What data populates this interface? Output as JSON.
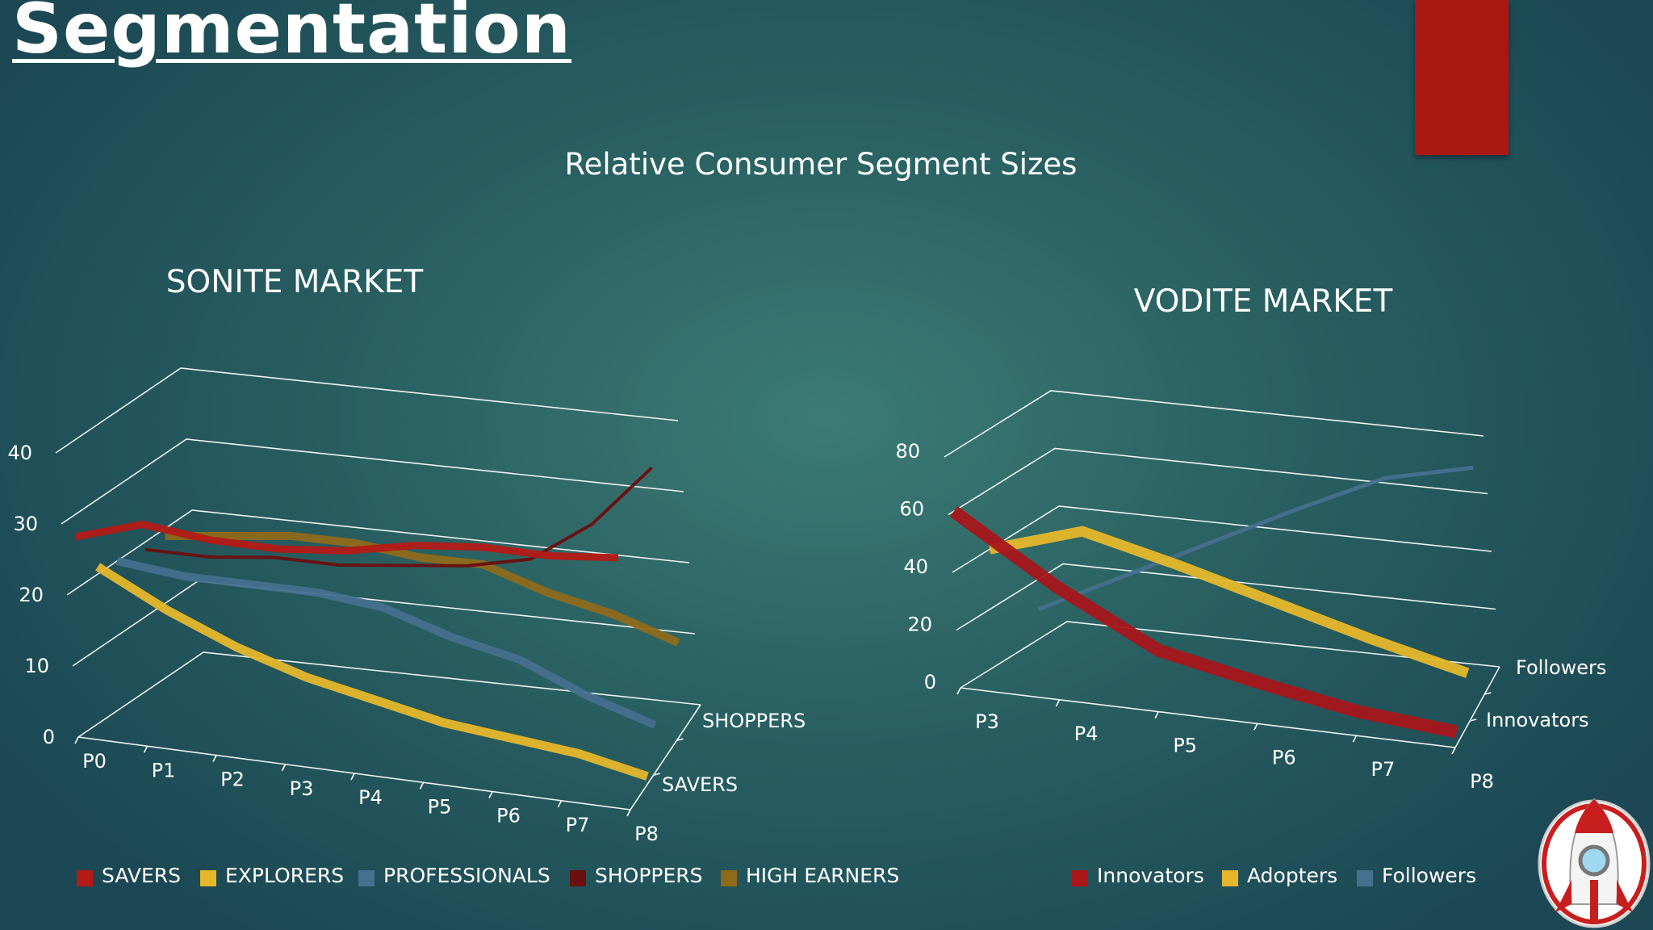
{
  "header": {
    "title": "Segmentation",
    "subtitle": "Relative Consumer Segment Sizes"
  },
  "chart_data": [
    {
      "type": "line",
      "style": "3d",
      "title": "SONITE MARKET",
      "categories": [
        "P0",
        "P1",
        "P2",
        "P3",
        "P4",
        "P5",
        "P6",
        "P7",
        "P8"
      ],
      "depth_labels": [
        "SHOPPERS",
        "SAVERS"
      ],
      "ylim": [
        0,
        40
      ],
      "yticks": [
        "0",
        "10",
        "20",
        "30",
        "40"
      ],
      "grid": true,
      "legend_position": "bottom",
      "series": [
        {
          "name": "SAVERS",
          "color": "#b51a16",
          "values": [
            27,
            30,
            29,
            29,
            30,
            32,
            33,
            33,
            34
          ]
        },
        {
          "name": "EXPLORERS",
          "color": "#e6b72a",
          "values": [
            21,
            16,
            12,
            9,
            7,
            5,
            4,
            3,
            1
          ]
        },
        {
          "name": "PROFESSIONALS",
          "color": "#45708e",
          "values": [
            20,
            19,
            19,
            19,
            18,
            15,
            13,
            9,
            6
          ]
        },
        {
          "name": "SHOPPERS",
          "color": "#6b0f0f",
          "values": [
            19,
            19,
            20,
            20,
            21,
            22,
            24,
            30,
            39
          ]
        },
        {
          "name": "HIGH EARNERS",
          "color": "#8f6a1a",
          "values": [
            19,
            20,
            21,
            21,
            20,
            20,
            17,
            15,
            12
          ]
        }
      ]
    },
    {
      "type": "line",
      "style": "3d",
      "title": "VODITE MARKET",
      "categories": [
        "P3",
        "P4",
        "P5",
        "P6",
        "P7",
        "P8"
      ],
      "depth_labels": [
        "Followers",
        "Innovators"
      ],
      "ylim": [
        0,
        80
      ],
      "yticks": [
        "0",
        "20",
        "40",
        "60",
        "80"
      ],
      "grid": true,
      "legend_position": "bottom",
      "series": [
        {
          "name": "Innovators",
          "color": "#a8161b",
          "values": [
            60,
            38,
            20,
            13,
            7,
            4
          ]
        },
        {
          "name": "Adopters",
          "color": "#e6b72a",
          "values": [
            40,
            50,
            42,
            33,
            24,
            16
          ]
        },
        {
          "name": "Followers",
          "color": "#45708e",
          "values": [
            10,
            25,
            40,
            55,
            69,
            76
          ]
        }
      ]
    }
  ]
}
